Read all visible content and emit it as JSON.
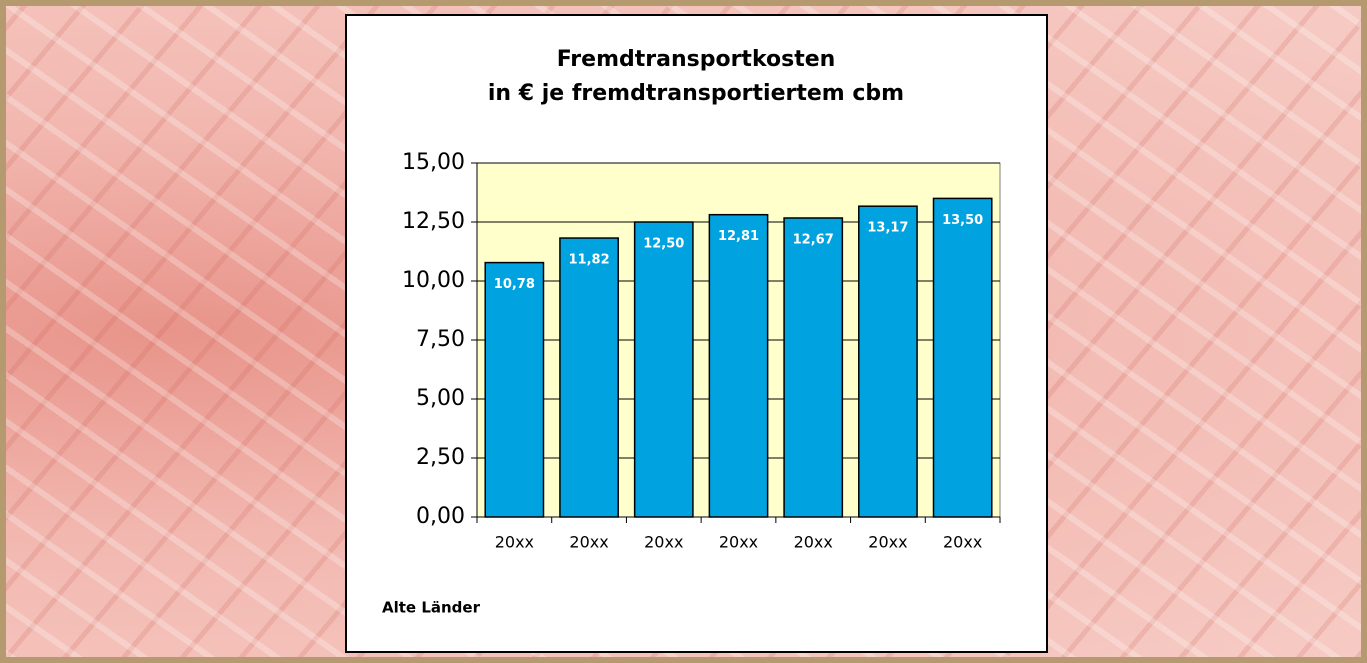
{
  "chart_data": {
    "type": "bar",
    "title": "Fremdtransportkosten",
    "subtitle": "in € je fremdtransportiertem cbm",
    "categories": [
      "20xx",
      "20xx",
      "20xx",
      "20xx",
      "20xx",
      "20xx",
      "20xx"
    ],
    "values": [
      10.78,
      11.82,
      12.5,
      12.81,
      12.67,
      13.17,
      13.5
    ],
    "value_labels": [
      "10,78",
      "11,82",
      "12,50",
      "12,81",
      "12,67",
      "13,17",
      "13,50"
    ],
    "color": "#00a3e0",
    "ylim": [
      0,
      15
    ],
    "yticks": [
      {
        "value": 0,
        "label": "0,00"
      },
      {
        "value": 2.5,
        "label": "2,50"
      },
      {
        "value": 5,
        "label": "5,00"
      },
      {
        "value": 7.5,
        "label": "7,50"
      },
      {
        "value": 10,
        "label": "10,00"
      },
      {
        "value": 12.5,
        "label": "12,50"
      },
      {
        "value": 15,
        "label": "15,00"
      }
    ],
    "grid": true,
    "note": "Alte Länder"
  }
}
